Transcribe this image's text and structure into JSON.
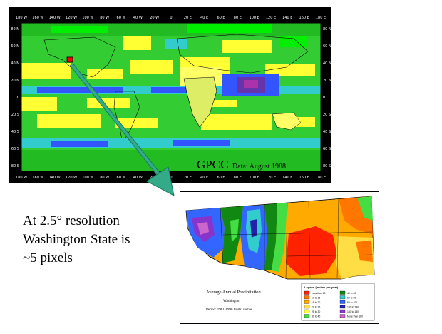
{
  "world_map": {
    "title": "GPCC",
    "date_label": "Data: August 1988",
    "top_ticks": [
      "180 W",
      "160 W",
      "140 W",
      "120 W",
      "100 W",
      "80 W",
      "60 W",
      "40 W",
      "20 W",
      "0",
      "20 E",
      "40 E",
      "60 E",
      "80 E",
      "100 E",
      "120 E",
      "140 E",
      "160 E",
      "180 E"
    ],
    "bottom_ticks": [
      "180 W",
      "160 W",
      "140 W",
      "120 W",
      "100 W",
      "80 W",
      "60 W",
      "40 W",
      "20 W",
      "0",
      "20 E",
      "40 E",
      "60 E",
      "80 E",
      "100 E",
      "120 E",
      "140 E",
      "160 E",
      "180 E"
    ],
    "lat_ticks": [
      "80 N",
      "60 N",
      "40 N",
      "20 N",
      "0",
      "20 S",
      "40 S",
      "60 S",
      "80 S"
    ],
    "colors": {
      "green": "#33cc33",
      "bright_green": "#00ee00",
      "yellow": "#ffff33",
      "cyan": "#33cccc",
      "blue": "#3355ff",
      "purple": "#6633aa",
      "magenta": "#aa33aa",
      "highlight": "#ff0000"
    }
  },
  "arrow": {
    "color": "#33aa88"
  },
  "caption": {
    "line1": "At 2.5° resolution",
    "line2": "Washington State is",
    "line3": "~5 pixels"
  },
  "washington_map": {
    "title": "Average Annual Precipitation",
    "subtitle": "Washington",
    "period": "Period: 1961-1990     Units: inches",
    "legend_title": "Legend (inches per year)",
    "legend": [
      {
        "label": "Less than 10",
        "color": "#ff2200"
      },
      {
        "label": "10 to 15",
        "color": "#ff7700"
      },
      {
        "label": "15 to 20",
        "color": "#ffaa00"
      },
      {
        "label": "20 to 25",
        "color": "#ffdd44"
      },
      {
        "label": "25 to 30",
        "color": "#ffff44"
      },
      {
        "label": "30 to 40",
        "color": "#44dd44"
      },
      {
        "label": "40 to 60",
        "color": "#118811"
      },
      {
        "label": "60 to 80",
        "color": "#33cccc"
      },
      {
        "label": "80 to 100",
        "color": "#3366ff"
      },
      {
        "label": "100 to 140",
        "color": "#2222aa"
      },
      {
        "label": "140 to 180",
        "color": "#8833cc"
      },
      {
        "label": "More than 180",
        "color": "#cc66cc"
      }
    ]
  }
}
